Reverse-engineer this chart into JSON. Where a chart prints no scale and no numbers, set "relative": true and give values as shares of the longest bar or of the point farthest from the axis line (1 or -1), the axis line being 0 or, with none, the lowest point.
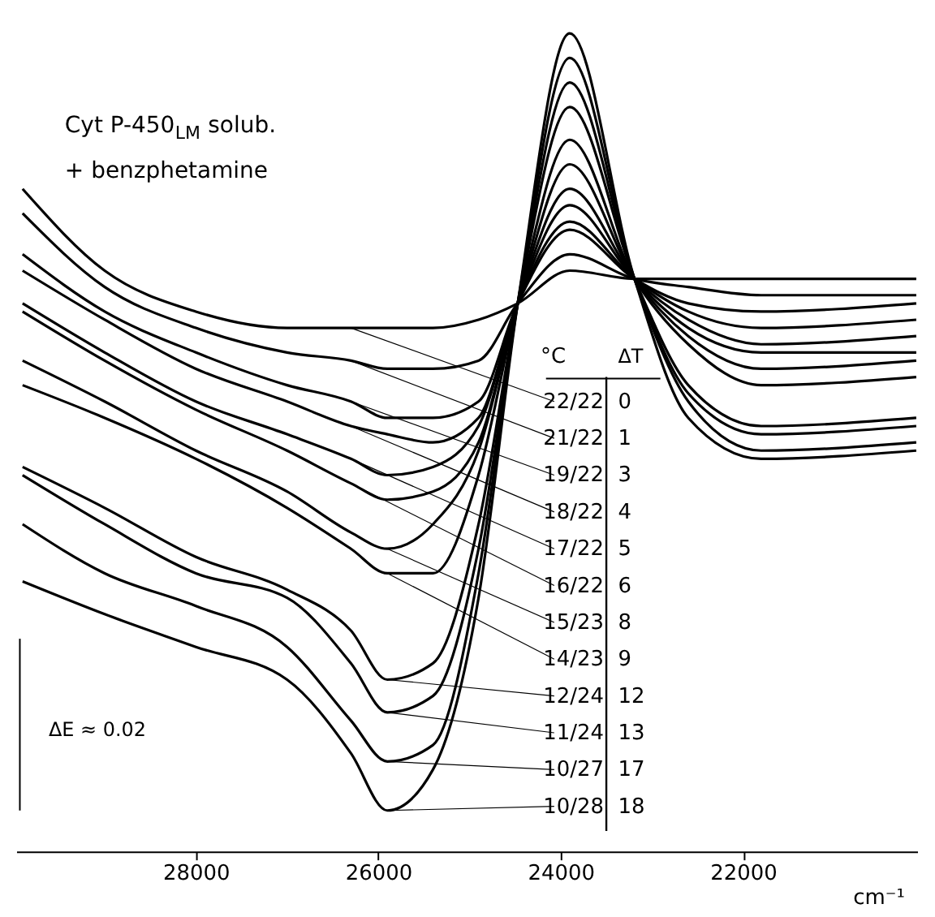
{
  "chart_data": {
    "type": "line",
    "relative": true,
    "title": "Cyt P-450$_{LM}$ solub.",
    "subtitle": "+ benzphetamine",
    "xlabel": "cm⁻¹",
    "x": [
      29900,
      29000,
      28000,
      27000,
      26300,
      25900,
      25400,
      24900,
      24470,
      23900,
      23190,
      22600,
      21800,
      20100
    ],
    "xlim": [
      29970,
      20090
    ],
    "xticks": [
      28000,
      26000,
      24000,
      22000
    ],
    "annotations": [
      "ΔE ≈ 0.02",
      "°C",
      "ΔT"
    ],
    "series": [
      {
        "name": "22/22 0",
        "color": "#000000",
        "values": [
          0.81,
          0.71,
          0.66,
          0.64,
          0.64,
          0.64,
          0.64,
          0.65,
          0.67,
          0.71,
          0.7,
          0.7,
          0.7,
          0.7
        ]
      },
      {
        "name": "21/22 1",
        "color": "#000000",
        "values": [
          0.78,
          0.69,
          0.64,
          0.61,
          0.6,
          0.59,
          0.59,
          0.6,
          0.67,
          0.73,
          0.7,
          0.69,
          0.68,
          0.68
        ]
      },
      {
        "name": "19/22 3",
        "color": "#000000",
        "values": [
          0.73,
          0.66,
          0.61,
          0.57,
          0.55,
          0.53,
          0.53,
          0.55,
          0.67,
          0.76,
          0.7,
          0.67,
          0.66,
          0.67
        ]
      },
      {
        "name": "18/22 4",
        "color": "#000000",
        "values": [
          0.71,
          0.65,
          0.59,
          0.55,
          0.52,
          0.51,
          0.5,
          0.53,
          0.67,
          0.77,
          0.7,
          0.66,
          0.64,
          0.65
        ]
      },
      {
        "name": "17/22 5",
        "color": "#000000",
        "values": [
          0.67,
          0.61,
          0.55,
          0.51,
          0.48,
          0.46,
          0.47,
          0.52,
          0.67,
          0.79,
          0.7,
          0.65,
          0.62,
          0.63
        ]
      },
      {
        "name": "16/22 6",
        "color": "#000000",
        "values": [
          0.66,
          0.6,
          0.54,
          0.49,
          0.45,
          0.43,
          0.44,
          0.5,
          0.67,
          0.81,
          0.7,
          0.64,
          0.61,
          0.61
        ]
      },
      {
        "name": "15/23 8",
        "color": "#000000",
        "values": [
          0.6,
          0.55,
          0.49,
          0.44,
          0.39,
          0.37,
          0.4,
          0.49,
          0.67,
          0.84,
          0.7,
          0.63,
          0.59,
          0.6
        ]
      },
      {
        "name": "14/23 9",
        "color": "#000000",
        "values": [
          0.57,
          0.53,
          0.48,
          0.42,
          0.37,
          0.34,
          0.34,
          0.46,
          0.67,
          0.87,
          0.7,
          0.62,
          0.57,
          0.58
        ]
      },
      {
        "name": "12/24 12",
        "color": "#000000",
        "values": [
          0.47,
          0.42,
          0.36,
          0.32,
          0.27,
          0.21,
          0.23,
          0.4,
          0.67,
          0.91,
          0.7,
          0.57,
          0.52,
          0.53
        ]
      },
      {
        "name": "11/24 13",
        "color": "#000000",
        "values": [
          0.46,
          0.4,
          0.34,
          0.31,
          0.23,
          0.17,
          0.19,
          0.37,
          0.67,
          0.94,
          0.7,
          0.56,
          0.51,
          0.52
        ]
      },
      {
        "name": "10/27 17",
        "color": "#000000",
        "values": [
          0.4,
          0.34,
          0.3,
          0.25,
          0.16,
          0.11,
          0.13,
          0.34,
          0.67,
          0.97,
          0.7,
          0.55,
          0.49,
          0.5
        ]
      },
      {
        "name": "10/28 18",
        "color": "#000000",
        "values": [
          0.33,
          0.29,
          0.25,
          0.21,
          0.12,
          0.05,
          0.1,
          0.31,
          0.67,
          1.0,
          0.7,
          0.53,
          0.48,
          0.49
        ]
      },
      {
        "color": "#000000",
        "x": [
          29930,
          29930
        ],
        "values": [
          0.05,
          0.26
        ]
      }
    ]
  }
}
